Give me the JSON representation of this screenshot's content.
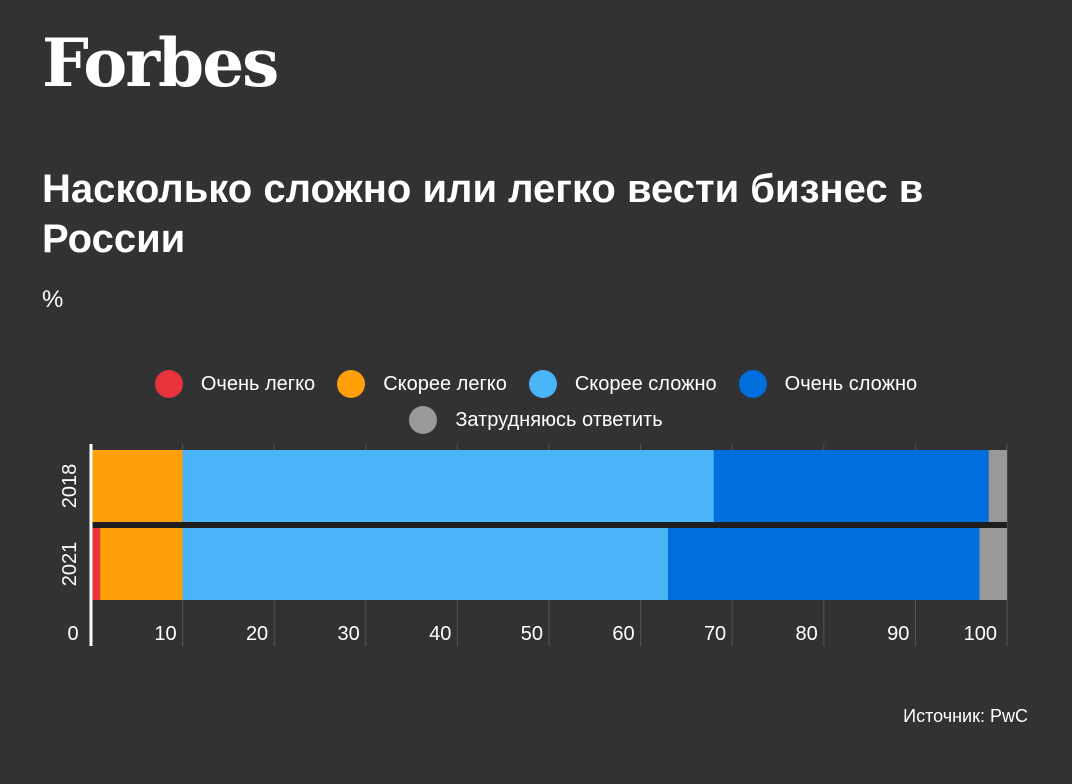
{
  "brand": {
    "logo_text": "Forbes"
  },
  "header": {
    "title": "Насколько сложно или легко вести бизнес в России",
    "unit": "%"
  },
  "footer": {
    "source": "Источник: PwC"
  },
  "chart_data": {
    "type": "bar",
    "orientation": "horizontal",
    "stacked": true,
    "categories": [
      "2018",
      "2021"
    ],
    "series": [
      {
        "name": "Очень легко",
        "color": "#e8323c",
        "values": [
          0,
          1
        ]
      },
      {
        "name": "Скорее легко",
        "color": "#ffa00a",
        "values": [
          10,
          9
        ]
      },
      {
        "name": "Скорее сложно",
        "color": "#4ab4f8",
        "values": [
          58,
          53
        ]
      },
      {
        "name": "Очень сложно",
        "color": "#006edc",
        "values": [
          30,
          34
        ]
      },
      {
        "name": "Затрудняюсь ответить",
        "color": "#999999",
        "values": [
          2,
          3
        ]
      }
    ],
    "xlim": [
      0,
      100
    ],
    "xticks": [
      0,
      10,
      20,
      30,
      40,
      50,
      60,
      70,
      80,
      90,
      100
    ],
    "grid": true,
    "legend_position": "top"
  }
}
